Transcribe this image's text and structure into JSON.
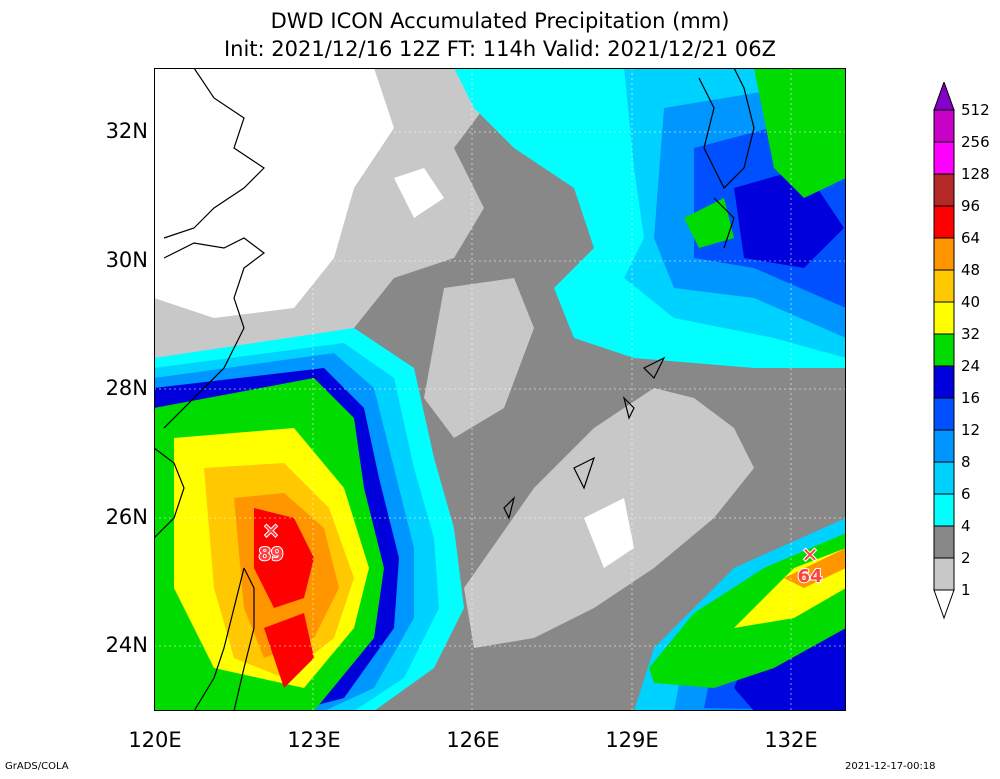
{
  "title": {
    "line1": "DWD ICON Accumulated Precipitation (mm)",
    "line2": "Init: 2021/12/16 12Z  FT: 114h  Valid: 2021/12/21 06Z"
  },
  "axes": {
    "x_ticks": [
      "120E",
      "123E",
      "126E",
      "129E",
      "132E"
    ],
    "y_ticks": [
      "32N",
      "30N",
      "28N",
      "26N",
      "24N"
    ]
  },
  "maxima": [
    {
      "label": "89",
      "lon": 122.3,
      "lat": 25.7
    },
    {
      "label": "64",
      "lon": 132.3,
      "lat": 25.4
    }
  ],
  "colorbar": {
    "levels": [
      "1",
      "2",
      "4",
      "6",
      "8",
      "12",
      "16",
      "24",
      "32",
      "40",
      "48",
      "64",
      "96",
      "128",
      "256",
      "512"
    ],
    "colors": [
      "#ffffff",
      "#c8c8c8",
      "#888888",
      "#00ffff",
      "#00d2ff",
      "#0096ff",
      "#0050ff",
      "#0000dc",
      "#00dc00",
      "#ffff00",
      "#ffc800",
      "#ff9600",
      "#ff0000",
      "#b42828",
      "#ff00ff",
      "#c800c8",
      "#8200c8"
    ]
  },
  "footer": {
    "left": "GrADS/COLA",
    "right": "2021-12-17-00:18"
  }
}
